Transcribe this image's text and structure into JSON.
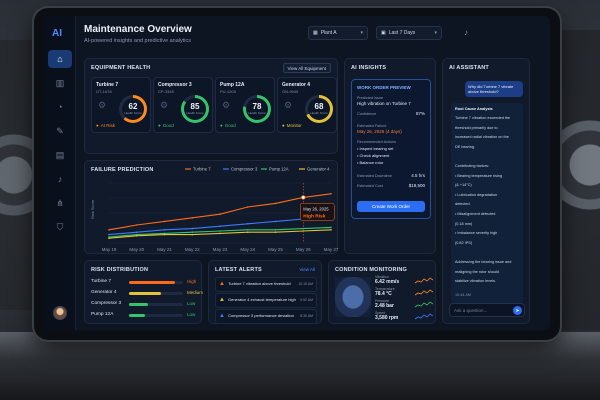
{
  "header": {
    "title": "Maintenance Overview",
    "subtitle": "AI-powered insights and predictive analytics",
    "plant_select": "Plant A",
    "range_select": "Last 7 Days"
  },
  "sidebar": {
    "logo": "AI",
    "items": [
      {
        "icon": "home-icon",
        "glyph": "⌂"
      },
      {
        "icon": "chart-icon",
        "glyph": "▥"
      },
      {
        "icon": "gauge-icon",
        "glyph": "◔"
      },
      {
        "icon": "wrench-icon",
        "glyph": "✎"
      },
      {
        "icon": "clipboard-icon",
        "glyph": "▤"
      },
      {
        "icon": "bell-icon",
        "glyph": "♪"
      },
      {
        "icon": "network-icon",
        "glyph": "⋔"
      },
      {
        "icon": "shield-icon",
        "glyph": "⛉"
      }
    ]
  },
  "equipment_health": {
    "title": "Equipment Health",
    "view_all": "View All Equipment",
    "items": [
      {
        "name": "Turbine 7",
        "id": "GT-1678",
        "score": 62,
        "score_label": "Health Score",
        "status": "At Risk",
        "color": "#ff8a1e"
      },
      {
        "name": "Compressor 3",
        "id": "CP-3345",
        "score": 85,
        "score_label": "Health Score",
        "status": "Good",
        "color": "#36c46a"
      },
      {
        "name": "Pump 12A",
        "id": "PU-1209",
        "score": 78,
        "score_label": "Health Score",
        "status": "Good",
        "color": "#36c46a"
      },
      {
        "name": "Generator 4",
        "id": "GN-9940",
        "score": 68,
        "score_label": "Health Score",
        "status": "Monitor",
        "color": "#e2c23a"
      }
    ]
  },
  "ai_insights": {
    "title": "AI Insights",
    "work_order": {
      "heading": "WORK ORDER PREVIEW",
      "predicted_issue_label": "Predicted Issue",
      "predicted_issue": "High vibration on Turbine 7",
      "confidence_label": "Confidence",
      "confidence": "87%",
      "estimated_failure_label": "Estimated Failure",
      "estimated_failure": "May 26, 2025 (4 days)",
      "actions_label": "Recommended Actions",
      "actions": [
        "• Inspect bearing set",
        "• Check alignment",
        "• Balance rotor"
      ],
      "downtime_label": "Estimated Downtime",
      "downtime": "4.5 hrs",
      "cost_label": "Estimated Cost",
      "cost": "$18,500",
      "button": "Create Work Order"
    }
  },
  "ai_assistant": {
    "title": "AI Assistant",
    "user_message": "Why did Turbine 7 vibrate above threshold?",
    "response_title": "Root Cause Analysis",
    "response_lines": [
      "Turbine 7 vibration exceeded the",
      "threshold primarily due to",
      "increased radial vibration on the",
      "DE bearing.",
      "",
      "Contributing factors:",
      "• Bearing temperature rising",
      "  (& +14°C)",
      "• Lubrication degradation",
      "  detected",
      "• Misalignment detected",
      "  (0.18 mm)",
      "• Imbalance severity high",
      "  (0.82 IPS)",
      "",
      "Addressing the bearing issue and",
      "realigning the rotor should",
      "stabilize vibration levels."
    ],
    "timestamp": "10:44 AM",
    "input_placeholder": "Ask a question..."
  },
  "failure_prediction": {
    "title": "FAILURE PREDICTION",
    "tooltip_date": "May 26, 2025",
    "tooltip_value": "High Risk",
    "y_axis_label": "Risk Score"
  },
  "chart_data": {
    "type": "line",
    "title": "FAILURE PREDICTION",
    "ylabel": "Risk Score",
    "x": [
      "May 19",
      "May 20",
      "May 21",
      "May 22",
      "May 23",
      "May 24",
      "May 25",
      "May 26",
      "May 27"
    ],
    "ylim": [
      0,
      100
    ],
    "series": [
      {
        "name": "Turbine 7",
        "color": "#ff6a1a",
        "values": [
          22,
          30,
          36,
          42,
          48,
          60,
          66,
          76,
          82
        ]
      },
      {
        "name": "Compressor 3",
        "color": "#3d7bff",
        "values": [
          14,
          18,
          22,
          24,
          28,
          32,
          36,
          40,
          46
        ]
      },
      {
        "name": "Pump 12A",
        "color": "#34c76a",
        "values": [
          10,
          14,
          16,
          18,
          20,
          22,
          22,
          24,
          26
        ]
      },
      {
        "name": "Generator 4",
        "color": "#e2c23a",
        "values": [
          8,
          12,
          14,
          14,
          16,
          18,
          18,
          20,
          22
        ]
      }
    ]
  },
  "risk_distribution": {
    "title": "RISK DISTRIBUTION",
    "items": [
      {
        "name": "Turbine 7",
        "level": "High",
        "fraction": 0.85,
        "color": "#ff6a1a"
      },
      {
        "name": "Generator 4",
        "level": "Medium",
        "fraction": 0.6,
        "color": "#e2c23a"
      },
      {
        "name": "Compressor 3",
        "level": "Low",
        "fraction": 0.35,
        "color": "#36c46a"
      },
      {
        "name": "Pump 12A",
        "level": "Low",
        "fraction": 0.3,
        "color": "#36c46a"
      }
    ]
  },
  "latest_alerts": {
    "title": "LATEST ALERTS",
    "view_all": "View All",
    "items": [
      {
        "text": "Turbine 7 vibration above threshold",
        "time": "10:15 AM",
        "color": "#ff6a1a"
      },
      {
        "text": "Generator 4 exhaust temperature high",
        "time": "9:52 AM",
        "color": "#e2c23a"
      },
      {
        "text": "Compressor 3 performance deviation",
        "time": "8:30 AM",
        "color": "#3d7bff"
      }
    ]
  },
  "condition_monitoring": {
    "title": "CONDITION MONITORING",
    "metrics": [
      {
        "label": "Vibration",
        "value": "6.42 mm/s",
        "color": "#ff8a1e"
      },
      {
        "label": "Temperature",
        "value": "78.4 °C",
        "color": "#ff8a1e"
      },
      {
        "label": "Pressure",
        "value": "2.48 bar",
        "color": "#36c46a"
      },
      {
        "label": "Speed",
        "value": "3,580 rpm",
        "color": "#3d7bff"
      }
    ]
  }
}
